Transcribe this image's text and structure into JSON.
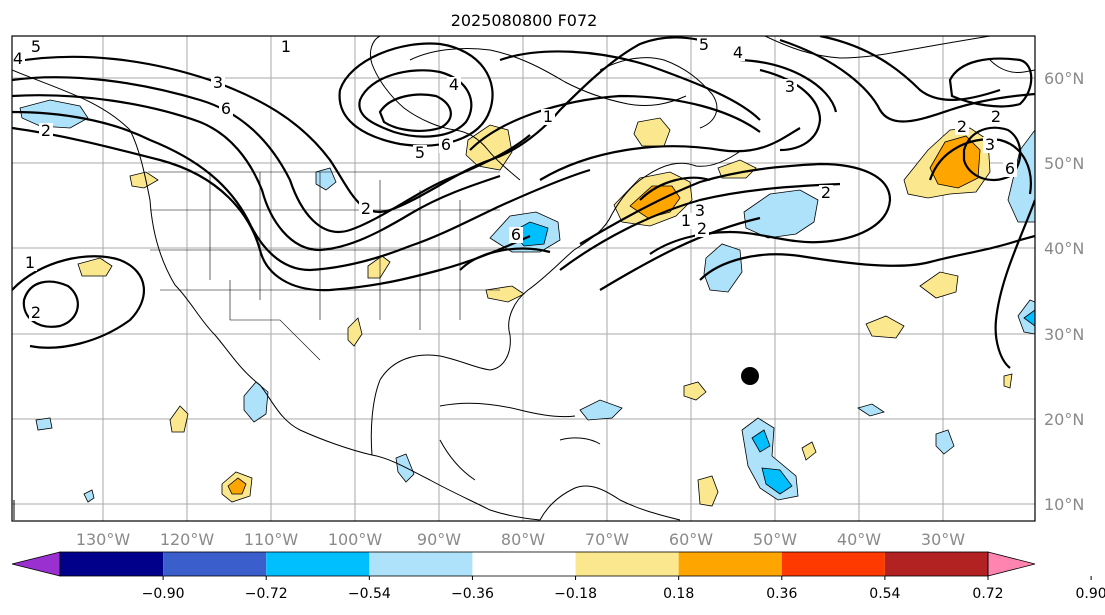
{
  "title": "2025080800 F072",
  "map": {
    "region": "North America and North Atlantic",
    "longitude_labels": [
      "130°W",
      "120°W",
      "110°W",
      "100°W",
      "90°W",
      "80°W",
      "70°W",
      "60°W",
      "50°W",
      "40°W",
      "30°W"
    ],
    "latitude_labels": [
      "60°N",
      "50°N",
      "40°N",
      "30°N",
      "20°N",
      "10°N"
    ],
    "grid": true,
    "marker": {
      "type": "black-dot",
      "lat": 25,
      "lon": -54
    }
  },
  "contours": {
    "color": "#000000",
    "visible_labels": [
      "5",
      "4",
      "3",
      "6",
      "1",
      "2",
      "4",
      "5",
      "6",
      "1",
      "2",
      "6",
      "5",
      "4",
      "3",
      "2",
      "1",
      "2",
      "3",
      "2",
      "2",
      "3",
      "6",
      "2",
      "1"
    ]
  },
  "colorbar": {
    "ticks": [
      "−0.90",
      "−0.72",
      "−0.54",
      "−0.36",
      "−0.18",
      "0.18",
      "0.36",
      "0.54",
      "0.72",
      "0.90"
    ],
    "colors": [
      "#9b30d0",
      "#00008b",
      "#3a5fcd",
      "#00bfff",
      "#aee2fb",
      "#ffffff",
      "#fbe88e",
      "#ffa500",
      "#ff3a00",
      "#b22222",
      "#ff85b0"
    ],
    "extend": "both"
  }
}
